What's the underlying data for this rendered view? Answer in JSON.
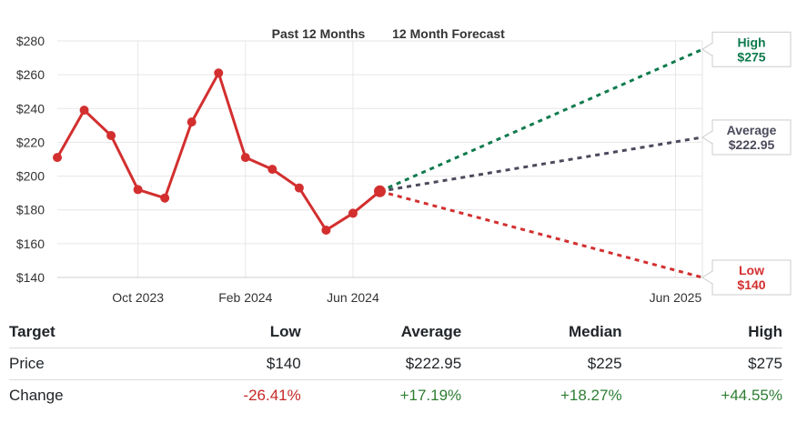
{
  "chart_data": {
    "type": "line",
    "header_left": "Past 12 Months",
    "header_right": "12 Month Forecast",
    "y_ticks": [
      "$280",
      "$260",
      "$240",
      "$220",
      "$200",
      "$180",
      "$160",
      "$140"
    ],
    "x_ticks": [
      "Oct 2023",
      "Feb 2024",
      "Jun 2024",
      "Jun 2025"
    ],
    "ylim": [
      140,
      280
    ],
    "grid": true,
    "series": [
      {
        "x": [
          "2023-07",
          "2023-08",
          "2023-09",
          "2023-10",
          "2023-11",
          "2023-12",
          "2024-01",
          "2024-02",
          "2024-03",
          "2024-04",
          "2024-05",
          "2024-06",
          "2024-07"
        ],
        "values": [
          211,
          239,
          224,
          192,
          187,
          232,
          261,
          211,
          204,
          193,
          168,
          178,
          191
        ],
        "color": "#d32f2f"
      }
    ],
    "forecast": {
      "start": {
        "x": "2024-07",
        "value": 191
      },
      "end_x": "2025-07",
      "targets": [
        {
          "label": "High",
          "value_label": "$275",
          "value": 275,
          "color": "#0f7a4d"
        },
        {
          "label": "Average",
          "value_label": "$222.95",
          "value": 222.95,
          "color": "#4a4a5c"
        },
        {
          "label": "Low",
          "value_label": "$140",
          "value": 140,
          "color": "#d32f2f"
        }
      ]
    }
  },
  "table": {
    "headers": [
      "Target",
      "Low",
      "Average",
      "Median",
      "High"
    ],
    "rows": [
      {
        "cells": [
          "Price",
          "$140",
          "$222.95",
          "$225",
          "$275"
        ]
      },
      {
        "cells": [
          "Change",
          "-26.41%",
          "+17.19%",
          "+18.27%",
          "+44.55%"
        ]
      }
    ]
  }
}
